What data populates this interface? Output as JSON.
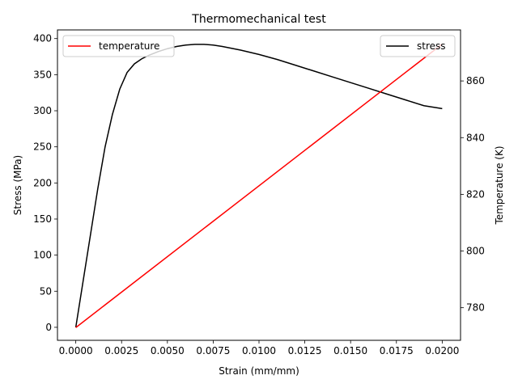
{
  "chart_data": {
    "type": "line",
    "title": "Thermomechanical test",
    "xlabel": "Strain (mm/mm)",
    "ylabel_left": "Stress (MPa)",
    "ylabel_right": "Temperature (K)",
    "xlim": [
      -0.001,
      0.021
    ],
    "ylim_left": [
      -18,
      412
    ],
    "ylim_right": [
      768.5,
      878
    ],
    "x_ticks": [
      0.0,
      0.0025,
      0.005,
      0.0075,
      0.01,
      0.0125,
      0.015,
      0.0175,
      0.02
    ],
    "x_tick_labels": [
      "0.0000",
      "0.0025",
      "0.0050",
      "0.0075",
      "0.0100",
      "0.0125",
      "0.0150",
      "0.0175",
      "0.0200"
    ],
    "y_left_ticks": [
      0,
      50,
      100,
      150,
      200,
      250,
      300,
      350,
      400
    ],
    "y_left_tick_labels": [
      "0",
      "50",
      "100",
      "150",
      "200",
      "250",
      "300",
      "350",
      "400"
    ],
    "y_right_ticks": [
      780,
      800,
      820,
      840,
      860
    ],
    "y_right_tick_labels": [
      "780",
      "800",
      "820",
      "840",
      "860"
    ],
    "grid": false,
    "series": [
      {
        "name": "stress",
        "axis": "left",
        "color": "#000000",
        "legend_position": "top-right",
        "x": [
          0.0,
          0.0004,
          0.0008,
          0.0012,
          0.0016,
          0.002,
          0.0024,
          0.0028,
          0.0032,
          0.0036,
          0.004,
          0.0045,
          0.005,
          0.0055,
          0.006,
          0.0065,
          0.007,
          0.0075,
          0.008,
          0.009,
          0.01,
          0.011,
          0.012,
          0.013,
          0.014,
          0.015,
          0.016,
          0.017,
          0.018,
          0.019,
          0.02
        ],
        "values": [
          0,
          64,
          128,
          192,
          250,
          295,
          330,
          353,
          365,
          372,
          377,
          382,
          386,
          389,
          391,
          392,
          392,
          391,
          389,
          384,
          378,
          371,
          363,
          355,
          347,
          339,
          331,
          323,
          315,
          307,
          303
        ]
      },
      {
        "name": "temperature",
        "axis": "right",
        "color": "#ff0000",
        "legend_position": "top-left",
        "x": [
          0.0,
          0.02
        ],
        "values": [
          773,
          873
        ]
      }
    ]
  }
}
